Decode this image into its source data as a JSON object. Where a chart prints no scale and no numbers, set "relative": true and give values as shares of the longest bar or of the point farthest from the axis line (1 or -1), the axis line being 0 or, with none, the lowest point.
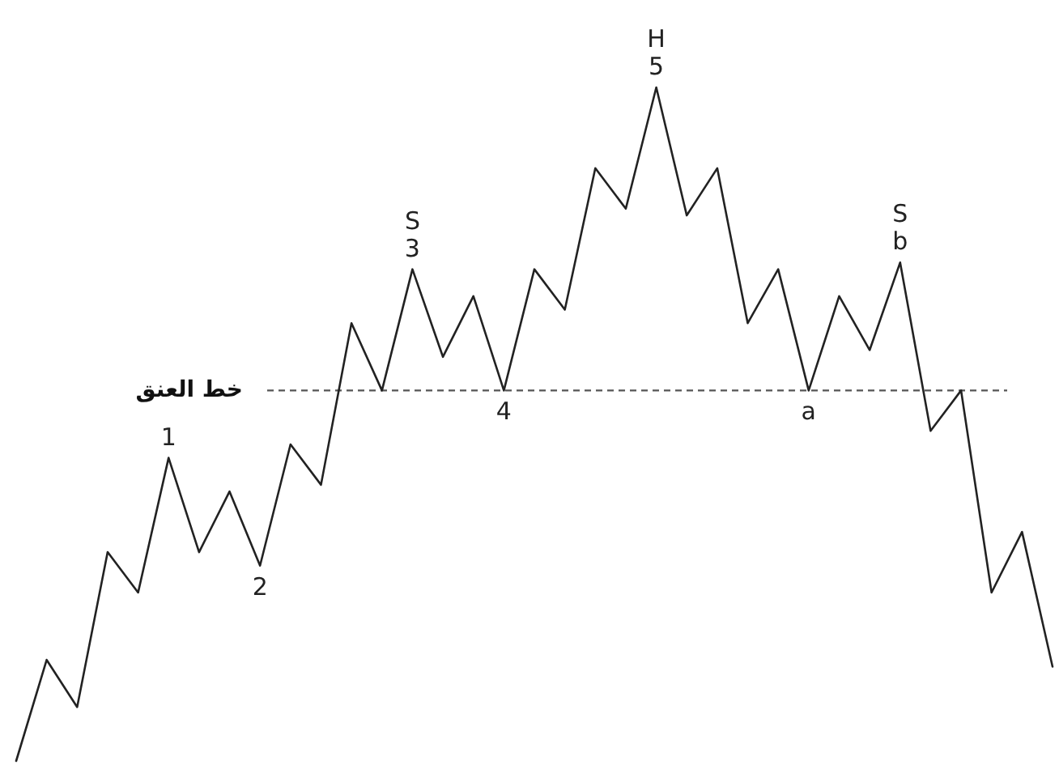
{
  "chart_data": {
    "type": "line",
    "relative": true,
    "marker": "none",
    "line_style": "solid",
    "categories": [
      null,
      null,
      null,
      null,
      null,
      null,
      null,
      null,
      null,
      null,
      null,
      null,
      null,
      null,
      null,
      null,
      null,
      null,
      null,
      null,
      null,
      null,
      null,
      null,
      null,
      null,
      null,
      null,
      null,
      null,
      null,
      null,
      null,
      null,
      null
    ],
    "series": [
      {
        "color": "#222222",
        "values": [
          0,
          0.15,
          0.08,
          0.31,
          0.25,
          0.45,
          0.31,
          0.4,
          0.29,
          0.47,
          0.41,
          0.65,
          0.55,
          0.73,
          0.6,
          0.69,
          0.55,
          0.73,
          0.67,
          0.88,
          0.82,
          1.0,
          0.81,
          0.88,
          0.65,
          0.73,
          0.55,
          0.69,
          0.61,
          0.74,
          0.49,
          0.55,
          0.25,
          0.34,
          0.14
        ]
      }
    ],
    "ref_lines": [
      {
        "axis": "y",
        "value": 0.55,
        "label": "خط العنق",
        "line_style": "dashed",
        "color": "#555555"
      }
    ],
    "annotations": [
      {
        "text": "1",
        "y": 0.45
      },
      {
        "text": "2",
        "y": 0.29
      },
      {
        "text": "3",
        "y": 0.73
      },
      {
        "text": "S",
        "y": 0.73
      },
      {
        "text": "4",
        "y": 0.55
      },
      {
        "text": "5",
        "y": 1.0
      },
      {
        "text": "H",
        "y": 1.0
      },
      {
        "text": "a",
        "y": 0.55
      },
      {
        "text": "b",
        "y": 0.74
      },
      {
        "text": "S",
        "y": 0.74
      }
    ]
  }
}
